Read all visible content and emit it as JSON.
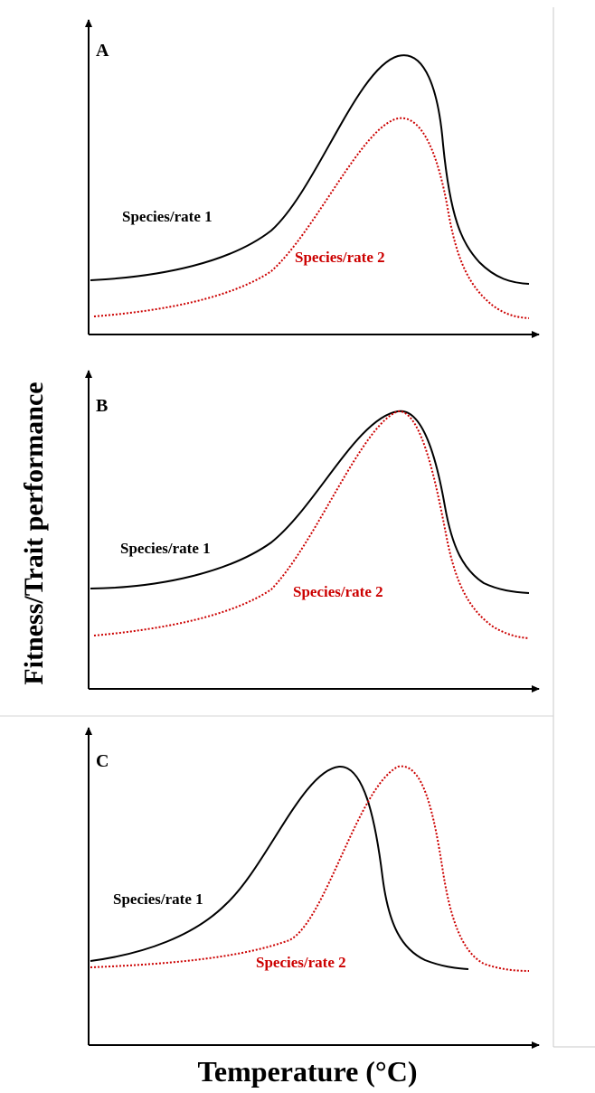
{
  "figure": {
    "y_axis_label": "Fitness/Trait  performance",
    "x_axis_label": "Temperature  (°C)",
    "colors": {
      "series_1": "#000000",
      "series_2": "#cc0000",
      "axes": "#000000",
      "frame": "#c8c8c8"
    }
  },
  "chart_data": [
    {
      "type": "line",
      "panel": "A",
      "series": [
        {
          "name": "Species/rate 1",
          "style": "solid",
          "color": "#000000"
        },
        {
          "name": "Species/rate 2",
          "style": "dotted",
          "color": "#cc0000"
        }
      ]
    },
    {
      "type": "line",
      "panel": "B",
      "series": [
        {
          "name": "Species/rate 1",
          "style": "solid",
          "color": "#000000"
        },
        {
          "name": "Species/rate 2",
          "style": "dotted",
          "color": "#cc0000"
        }
      ]
    },
    {
      "type": "line",
      "panel": "C",
      "series": [
        {
          "name": "Species/rate 1",
          "style": "solid",
          "color": "#000000"
        },
        {
          "name": "Species/rate 2",
          "style": "dotted",
          "color": "#cc0000"
        }
      ]
    }
  ]
}
